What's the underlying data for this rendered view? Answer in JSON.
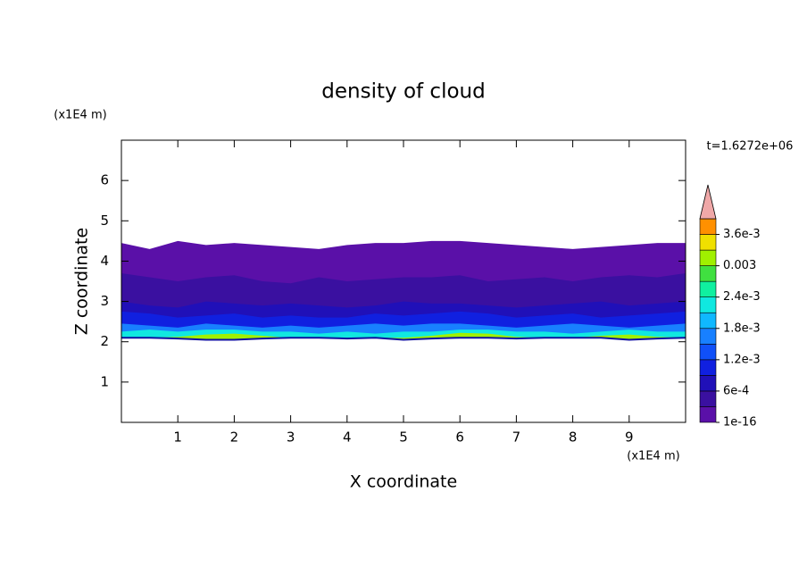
{
  "chart_data": {
    "type": "contour",
    "title": "density of cloud",
    "x_label": "X coordinate",
    "y_label": "Z coordinate",
    "x_unit": "(x1E4 m)",
    "y_unit": "(x1E4 m)",
    "time_label": "t=1.6272e+06",
    "xlim": [
      0,
      10
    ],
    "ylim": [
      0,
      7
    ],
    "xticks": [
      1,
      2,
      3,
      4,
      5,
      6,
      7,
      8,
      9
    ],
    "yticks": [
      1,
      2,
      3,
      4,
      5,
      6
    ],
    "x": [
      0,
      0.5,
      1,
      1.5,
      2,
      2.5,
      3,
      3.5,
      4,
      4.5,
      5,
      5.5,
      6,
      6.5,
      7,
      7.5,
      8,
      8.5,
      9,
      9.5,
      10
    ],
    "base": [
      2.1,
      2.1,
      2.08,
      2.05,
      2.05,
      2.08,
      2.1,
      2.1,
      2.08,
      2.1,
      2.05,
      2.08,
      2.1,
      2.1,
      2.08,
      2.1,
      2.1,
      2.1,
      2.05,
      2.08,
      2.1
    ],
    "layers": [
      {
        "level": 0,
        "top": [
          4.45,
          4.3,
          4.5,
          4.4,
          4.45,
          4.4,
          4.35,
          4.3,
          4.4,
          4.45,
          4.45,
          4.5,
          4.5,
          4.45,
          4.4,
          4.35,
          4.3,
          4.35,
          4.4,
          4.45,
          4.45
        ]
      },
      {
        "level": 1,
        "top": [
          3.7,
          3.6,
          3.5,
          3.6,
          3.65,
          3.5,
          3.45,
          3.6,
          3.5,
          3.55,
          3.6,
          3.6,
          3.65,
          3.5,
          3.55,
          3.6,
          3.5,
          3.6,
          3.65,
          3.6,
          3.7
        ]
      },
      {
        "level": 2,
        "top": [
          3.0,
          2.9,
          2.85,
          3.0,
          2.95,
          2.9,
          2.95,
          2.9,
          2.85,
          2.9,
          3.0,
          2.95,
          2.95,
          2.9,
          2.85,
          2.9,
          2.95,
          3.0,
          2.9,
          2.95,
          3.0
        ]
      },
      {
        "level": 3,
        "top": [
          2.75,
          2.7,
          2.6,
          2.65,
          2.7,
          2.6,
          2.65,
          2.6,
          2.6,
          2.7,
          2.65,
          2.7,
          2.75,
          2.7,
          2.6,
          2.65,
          2.7,
          2.6,
          2.65,
          2.7,
          2.75
        ]
      },
      {
        "level": 5,
        "top": [
          2.45,
          2.4,
          2.35,
          2.45,
          2.4,
          2.35,
          2.4,
          2.35,
          2.4,
          2.45,
          2.4,
          2.45,
          2.45,
          2.4,
          2.35,
          2.4,
          2.45,
          2.4,
          2.35,
          2.4,
          2.45
        ]
      },
      {
        "level": 7,
        "top": [
          2.25,
          2.3,
          2.25,
          2.3,
          2.3,
          2.25,
          2.25,
          2.2,
          2.25,
          2.2,
          2.25,
          2.25,
          2.3,
          2.3,
          2.25,
          2.25,
          2.2,
          2.25,
          2.3,
          2.25,
          2.25
        ]
      },
      {
        "level": 10,
        "top": [
          2.1,
          2.1,
          2.12,
          2.18,
          2.2,
          2.15,
          2.1,
          2.1,
          2.1,
          2.1,
          2.1,
          2.15,
          2.22,
          2.2,
          2.12,
          2.1,
          2.1,
          2.15,
          2.18,
          2.12,
          2.1
        ]
      }
    ],
    "colorbar": {
      "levels": [
        1e-16,
        0.0003,
        0.0006,
        0.0009,
        0.0012,
        0.0015,
        0.0018,
        0.0021,
        0.0024,
        0.0027,
        0.003,
        0.0033,
        0.0036,
        0.0039
      ],
      "colors": [
        "#5a10a8",
        "#3a10a0",
        "#2010b8",
        "#1020e0",
        "#1050f8",
        "#1880ff",
        "#10b8ff",
        "#10e8e0",
        "#10f0a0",
        "#40e040",
        "#a0f000",
        "#f0e000",
        "#ff9000"
      ],
      "extend_color": "#f0a8a8",
      "ticks": [
        {
          "value": 1e-16,
          "label": "1e-16"
        },
        {
          "value": 0.0006,
          "label": "6e-4"
        },
        {
          "value": 0.0012,
          "label": "1.2e-3"
        },
        {
          "value": 0.0018,
          "label": "1.8e-3"
        },
        {
          "value": 0.0024,
          "label": "2.4e-3"
        },
        0.003,
        {
          "value": 0.0036,
          "label": "3.6e-3"
        }
      ]
    }
  }
}
